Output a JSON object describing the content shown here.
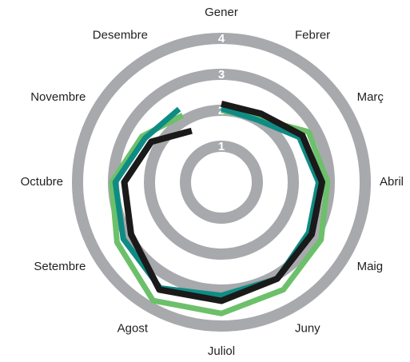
{
  "chart_data": {
    "type": "radar",
    "categories": [
      "Gener",
      "Febrer",
      "Març",
      "Abril",
      "Maig",
      "Juny",
      "Juliol",
      "Agost",
      "Setembre",
      "Octubre",
      "Novembre",
      "Desembre"
    ],
    "ylim": [
      0,
      4
    ],
    "yticks": [
      1,
      2,
      3,
      4
    ],
    "ring_color": "#a7a9ac",
    "series": [
      {
        "color": "#6cc06a",
        "values": [
          2.0,
          2.05,
          2.8,
          2.95,
          3.2,
          3.45,
          3.65,
          3.8,
          3.35,
          3.05,
          2.55,
          2.15
        ]
      },
      {
        "color": "#0e8c84",
        "values": [
          2.05,
          2.0,
          2.5,
          2.7,
          2.8,
          3.1,
          3.15,
          3.4,
          3.15,
          2.95,
          2.45,
          2.35
        ]
      },
      {
        "color": "#1a1a1a",
        "values": [
          2.18,
          2.2,
          2.6,
          2.8,
          2.9,
          3.1,
          3.3,
          3.45,
          2.9,
          2.7,
          2.25,
          1.65
        ]
      }
    ]
  }
}
